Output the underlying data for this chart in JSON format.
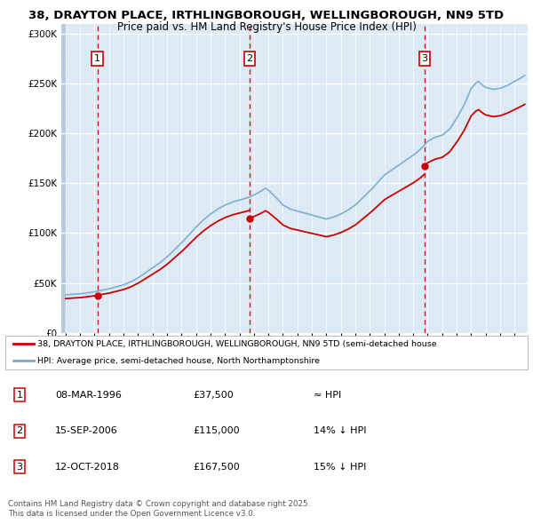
{
  "title_line1": "38, DRAYTON PLACE, IRTHLINGBOROUGH, WELLINGBOROUGH, NN9 5TD",
  "title_line2": "Price paid vs. HM Land Registry's House Price Index (HPI)",
  "bg_color": "#ddeaf5",
  "red_line_color": "#cc0000",
  "blue_line_color": "#7aadcc",
  "purchase_dates_dec": [
    1996.19,
    2006.71,
    2018.79
  ],
  "purchase_prices": [
    37500,
    115000,
    167500
  ],
  "purchase_labels": [
    "1",
    "2",
    "3"
  ],
  "legend_label_red": "38, DRAYTON PLACE, IRTHLINGBOROUGH, WELLINGBOROUGH, NN9 5TD (semi-detached house",
  "legend_label_blue": "HPI: Average price, semi-detached house, North Northamptonshire",
  "table_rows": [
    [
      "1",
      "08-MAR-1996",
      "£37,500",
      "≈ HPI"
    ],
    [
      "2",
      "15-SEP-2006",
      "£115,000",
      "14% ↓ HPI"
    ],
    [
      "3",
      "12-OCT-2018",
      "£167,500",
      "15% ↓ HPI"
    ]
  ],
  "footer_text": "Contains HM Land Registry data © Crown copyright and database right 2025.\nThis data is licensed under the Open Government Licence v3.0.",
  "ylim": [
    0,
    310000
  ],
  "yticks": [
    0,
    50000,
    100000,
    150000,
    200000,
    250000,
    300000
  ],
  "xlim_start": 1993.7,
  "xlim_end": 2025.9,
  "hpi_start_year": 1994.0,
  "hpi_end_year": 2025.7
}
